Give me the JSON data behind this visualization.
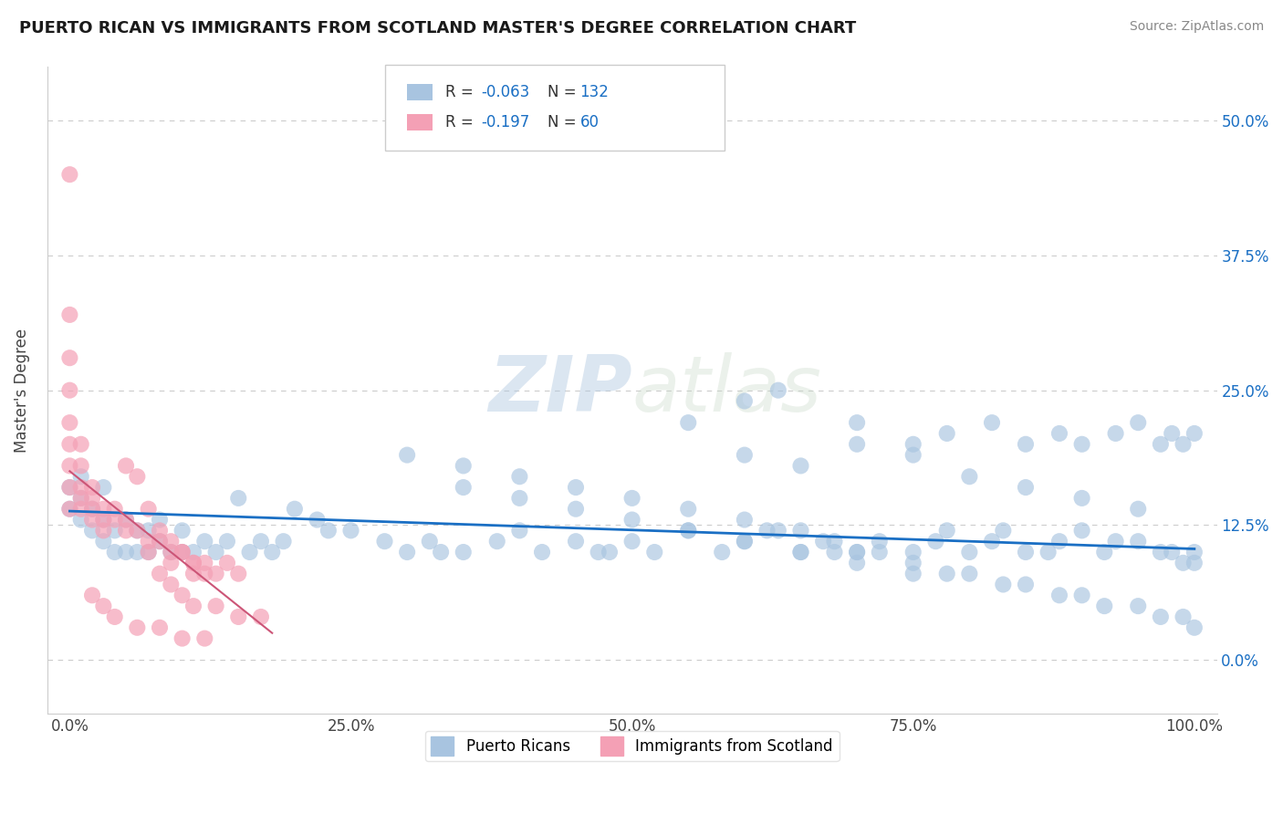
{
  "title": "PUERTO RICAN VS IMMIGRANTS FROM SCOTLAND MASTER'S DEGREE CORRELATION CHART",
  "source": "Source: ZipAtlas.com",
  "ylabel_label": "Master's Degree",
  "xlim": [
    -0.02,
    1.02
  ],
  "ylim": [
    -0.05,
    0.55
  ],
  "r_blue": -0.063,
  "n_blue": 132,
  "r_pink": -0.197,
  "n_pink": 60,
  "blue_color": "#a8c4e0",
  "pink_color": "#f4a0b5",
  "line_blue": "#1a6fc4",
  "line_pink": "#cc5577",
  "watermark_zip": "ZIP",
  "watermark_atlas": "atlas",
  "blue_scatter_x": [
    0.0,
    0.0,
    0.01,
    0.01,
    0.01,
    0.02,
    0.02,
    0.03,
    0.03,
    0.03,
    0.04,
    0.04,
    0.05,
    0.05,
    0.06,
    0.06,
    0.07,
    0.07,
    0.08,
    0.08,
    0.09,
    0.1,
    0.1,
    0.11,
    0.12,
    0.13,
    0.14,
    0.15,
    0.16,
    0.17,
    0.18,
    0.19,
    0.2,
    0.22,
    0.23,
    0.25,
    0.28,
    0.3,
    0.32,
    0.33,
    0.35,
    0.38,
    0.4,
    0.42,
    0.45,
    0.47,
    0.48,
    0.5,
    0.52,
    0.55,
    0.58,
    0.6,
    0.62,
    0.65,
    0.67,
    0.68,
    0.7,
    0.72,
    0.75,
    0.77,
    0.78,
    0.8,
    0.82,
    0.83,
    0.85,
    0.87,
    0.88,
    0.9,
    0.92,
    0.93,
    0.95,
    0.97,
    0.98,
    0.99,
    1.0,
    1.0,
    0.55,
    0.6,
    0.63,
    0.7,
    0.75,
    0.78,
    0.82,
    0.85,
    0.88,
    0.9,
    0.93,
    0.95,
    0.97,
    0.98,
    0.99,
    1.0,
    0.3,
    0.35,
    0.4,
    0.45,
    0.5,
    0.55,
    0.6,
    0.63,
    0.65,
    0.68,
    0.7,
    0.72,
    0.75,
    0.78,
    0.8,
    0.83,
    0.85,
    0.88,
    0.9,
    0.92,
    0.95,
    0.97,
    0.99,
    1.0,
    0.6,
    0.65,
    0.7,
    0.75,
    0.8,
    0.85,
    0.9,
    0.95,
    0.35,
    0.4,
    0.45,
    0.5,
    0.55,
    0.6,
    0.65,
    0.7,
    0.75
  ],
  "blue_scatter_y": [
    0.14,
    0.16,
    0.13,
    0.15,
    0.17,
    0.12,
    0.14,
    0.11,
    0.13,
    0.16,
    0.1,
    0.12,
    0.1,
    0.13,
    0.1,
    0.12,
    0.1,
    0.12,
    0.11,
    0.13,
    0.1,
    0.1,
    0.12,
    0.1,
    0.11,
    0.1,
    0.11,
    0.15,
    0.1,
    0.11,
    0.1,
    0.11,
    0.14,
    0.13,
    0.12,
    0.12,
    0.11,
    0.1,
    0.11,
    0.1,
    0.1,
    0.11,
    0.12,
    0.1,
    0.11,
    0.1,
    0.1,
    0.11,
    0.1,
    0.12,
    0.1,
    0.11,
    0.12,
    0.1,
    0.11,
    0.1,
    0.1,
    0.11,
    0.1,
    0.11,
    0.12,
    0.1,
    0.11,
    0.12,
    0.1,
    0.1,
    0.11,
    0.12,
    0.1,
    0.11,
    0.11,
    0.1,
    0.1,
    0.09,
    0.1,
    0.09,
    0.22,
    0.24,
    0.25,
    0.22,
    0.2,
    0.21,
    0.22,
    0.2,
    0.21,
    0.2,
    0.21,
    0.22,
    0.2,
    0.21,
    0.2,
    0.21,
    0.19,
    0.18,
    0.17,
    0.16,
    0.15,
    0.14,
    0.13,
    0.12,
    0.12,
    0.11,
    0.1,
    0.1,
    0.09,
    0.08,
    0.08,
    0.07,
    0.07,
    0.06,
    0.06,
    0.05,
    0.05,
    0.04,
    0.04,
    0.03,
    0.19,
    0.18,
    0.2,
    0.19,
    0.17,
    0.16,
    0.15,
    0.14,
    0.16,
    0.15,
    0.14,
    0.13,
    0.12,
    0.11,
    0.1,
    0.09,
    0.08
  ],
  "pink_scatter_x": [
    0.0,
    0.0,
    0.0,
    0.0,
    0.0,
    0.0,
    0.0,
    0.0,
    0.0,
    0.01,
    0.01,
    0.01,
    0.01,
    0.01,
    0.02,
    0.02,
    0.02,
    0.02,
    0.03,
    0.03,
    0.03,
    0.04,
    0.04,
    0.05,
    0.05,
    0.06,
    0.07,
    0.08,
    0.09,
    0.1,
    0.11,
    0.12,
    0.13,
    0.05,
    0.06,
    0.07,
    0.08,
    0.09,
    0.1,
    0.11,
    0.12,
    0.14,
    0.15,
    0.08,
    0.09,
    0.1,
    0.11,
    0.13,
    0.15,
    0.17,
    0.02,
    0.03,
    0.04,
    0.06,
    0.08,
    0.1,
    0.12,
    0.07,
    0.09,
    0.11
  ],
  "pink_scatter_y": [
    0.45,
    0.32,
    0.28,
    0.25,
    0.22,
    0.2,
    0.18,
    0.16,
    0.14,
    0.2,
    0.18,
    0.16,
    0.15,
    0.14,
    0.16,
    0.15,
    0.14,
    0.13,
    0.14,
    0.13,
    0.12,
    0.14,
    0.13,
    0.13,
    0.12,
    0.12,
    0.11,
    0.11,
    0.1,
    0.1,
    0.09,
    0.09,
    0.08,
    0.18,
    0.17,
    0.14,
    0.12,
    0.11,
    0.1,
    0.09,
    0.08,
    0.09,
    0.08,
    0.08,
    0.07,
    0.06,
    0.05,
    0.05,
    0.04,
    0.04,
    0.06,
    0.05,
    0.04,
    0.03,
    0.03,
    0.02,
    0.02,
    0.1,
    0.09,
    0.08
  ],
  "blue_line_x": [
    0.0,
    1.0
  ],
  "blue_line_y": [
    0.138,
    0.103
  ],
  "pink_line_x": [
    0.0,
    0.18
  ],
  "pink_line_y": [
    0.175,
    0.025
  ],
  "legend_blue_label": "Puerto Ricans",
  "legend_pink_label": "Immigrants from Scotland",
  "dashed_color": "#cccccc",
  "yticks": [
    0.0,
    0.125,
    0.25,
    0.375,
    0.5
  ],
  "yticklabels": [
    "0.0%",
    "12.5%",
    "25.0%",
    "37.5%",
    "50.0%"
  ],
  "xticks": [
    0.0,
    0.25,
    0.5,
    0.75,
    1.0
  ],
  "xticklabels": [
    "0.0%",
    "25.0%",
    "50.0%",
    "75.0%",
    "100.0%"
  ]
}
